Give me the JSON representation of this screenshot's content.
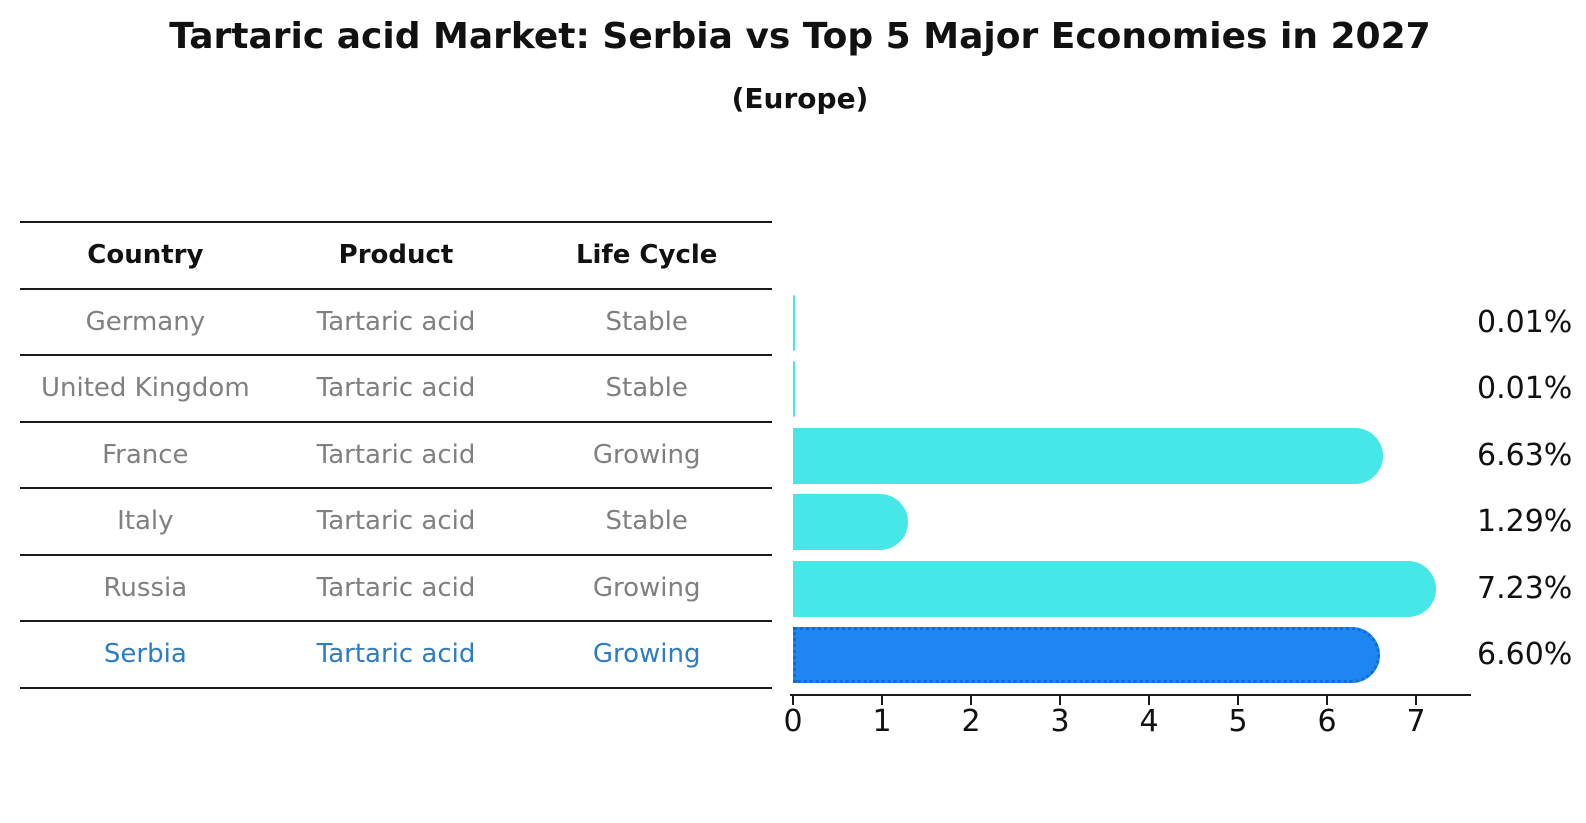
{
  "title": "Tartaric acid Market: Serbia vs Top 5 Major Economies in 2027",
  "subtitle": "(Europe)",
  "table": {
    "headers": {
      "country": "Country",
      "product": "Product",
      "life_cycle": "Life Cycle"
    },
    "rows": [
      {
        "country": "Germany",
        "product": "Tartaric acid",
        "life_cycle": "Stable"
      },
      {
        "country": "United Kingdom",
        "product": "Tartaric acid",
        "life_cycle": "Stable"
      },
      {
        "country": "France",
        "product": "Tartaric acid",
        "life_cycle": "Growing"
      },
      {
        "country": "Italy",
        "product": "Tartaric acid",
        "life_cycle": "Stable"
      },
      {
        "country": "Russia",
        "product": "Tartaric acid",
        "life_cycle": "Growing"
      },
      {
        "country": "Serbia",
        "product": "Tartaric acid",
        "life_cycle": "Growing"
      }
    ],
    "highlight_row": "Serbia"
  },
  "chart_data": {
    "type": "bar",
    "orientation": "horizontal",
    "title": "Tartaric acid Market: Serbia vs Top 5 Major Economies in 2027",
    "subtitle": "(Europe)",
    "categories": [
      "Germany",
      "United Kingdom",
      "France",
      "Italy",
      "Russia",
      "Serbia"
    ],
    "values": [
      0.01,
      0.01,
      6.63,
      1.29,
      7.23,
      6.6
    ],
    "value_labels": [
      "0.01%",
      "0.01%",
      "6.63%",
      "1.29%",
      "7.23%",
      "6.60%"
    ],
    "unit": "%",
    "xlim": [
      0,
      7.6
    ],
    "x_tick_labels": [
      "0",
      "1",
      "2",
      "3",
      "4",
      "5",
      "6",
      "7"
    ],
    "grid": false,
    "legend": false,
    "bar_color": "#45e8e6",
    "highlight_index": 5,
    "highlight_color": "#1e86f0",
    "highlight_border_color": "#0d6cd8",
    "highlight_text_color": "#2e7cc4",
    "row_text_color": "#808080",
    "line_color": "#1a1a1a"
  }
}
